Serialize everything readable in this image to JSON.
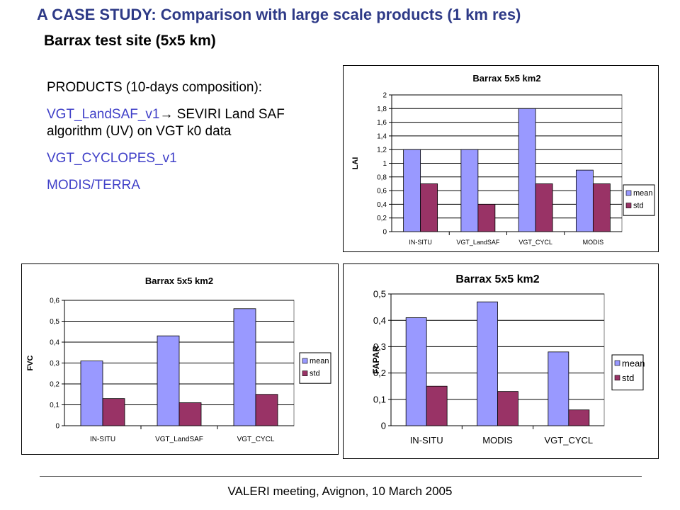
{
  "slide": {
    "title": "A CASE STUDY: Comparison with large scale products (1 km res)",
    "subtitle": "Barrax test site (5x5 km)",
    "products_heading": "PRODUCTS (10-days composition):",
    "product1_name": "VGT_LandSAF_v1",
    "product1_arrow": "→",
    "product1_desc": " SEVIRI Land SAF algorithm (UV) on VGT k0 data",
    "product2": "VGT_CYCLOPES_v1",
    "product3": "MODIS/TERRA",
    "footer": "VALERI meeting, Avignon, 10 March 2005"
  },
  "colors": {
    "mean": "#9999ff",
    "std": "#993366",
    "title": "#2e3a87",
    "link": "#4040c8"
  },
  "chart_data": [
    {
      "type": "bar",
      "title": "Barrax 5x5 km2",
      "xlabel": "",
      "ylabel": "LAI",
      "categories": [
        "IN-SITU",
        "VGT_LandSAF",
        "VGT_CYCL",
        "MODIS"
      ],
      "series": [
        {
          "name": "mean",
          "values": [
            1.2,
            1.2,
            1.8,
            0.9
          ]
        },
        {
          "name": "std",
          "values": [
            0.7,
            0.4,
            0.7,
            0.7
          ]
        }
      ],
      "ylim": [
        0,
        2
      ],
      "yticks": [
        0,
        0.2,
        0.4,
        0.6,
        0.8,
        1,
        1.2,
        1.4,
        1.6,
        1.8,
        2
      ],
      "ytick_labels": [
        "0",
        "0,2",
        "0,4",
        "0,6",
        "0,8",
        "1",
        "1,2",
        "1,4",
        "1,6",
        "1,8",
        "2"
      ],
      "grid": true,
      "legend": "right"
    },
    {
      "type": "bar",
      "title": "Barrax 5x5 km2",
      "xlabel": "",
      "ylabel": "FVC",
      "categories": [
        "IN-SITU",
        "VGT_LandSAF",
        "VGT_CYCL"
      ],
      "series": [
        {
          "name": "mean",
          "values": [
            0.31,
            0.43,
            0.56
          ]
        },
        {
          "name": "std",
          "values": [
            0.13,
            0.11,
            0.15
          ]
        }
      ],
      "ylim": [
        0,
        0.6
      ],
      "yticks": [
        0,
        0.1,
        0.2,
        0.3,
        0.4,
        0.5,
        0.6
      ],
      "ytick_labels": [
        "0",
        "0,1",
        "0,2",
        "0,3",
        "0,4",
        "0,5",
        "0,6"
      ],
      "grid": true,
      "legend": "right"
    },
    {
      "type": "bar",
      "title": "Barrax 5x5 km2",
      "xlabel": "",
      "ylabel": "FAPAR",
      "categories": [
        "IN-SITU",
        "MODIS",
        "VGT_CYCL"
      ],
      "series": [
        {
          "name": "mean",
          "values": [
            0.41,
            0.47,
            0.28
          ]
        },
        {
          "name": "std",
          "values": [
            0.15,
            0.13,
            0.06
          ]
        }
      ],
      "ylim": [
        0,
        0.5
      ],
      "yticks": [
        0,
        0.1,
        0.2,
        0.3,
        0.4,
        0.5
      ],
      "ytick_labels": [
        "0",
        "0,1",
        "0,2",
        "0,3",
        "0,4",
        "0,5"
      ],
      "grid": true,
      "legend": "right"
    }
  ]
}
